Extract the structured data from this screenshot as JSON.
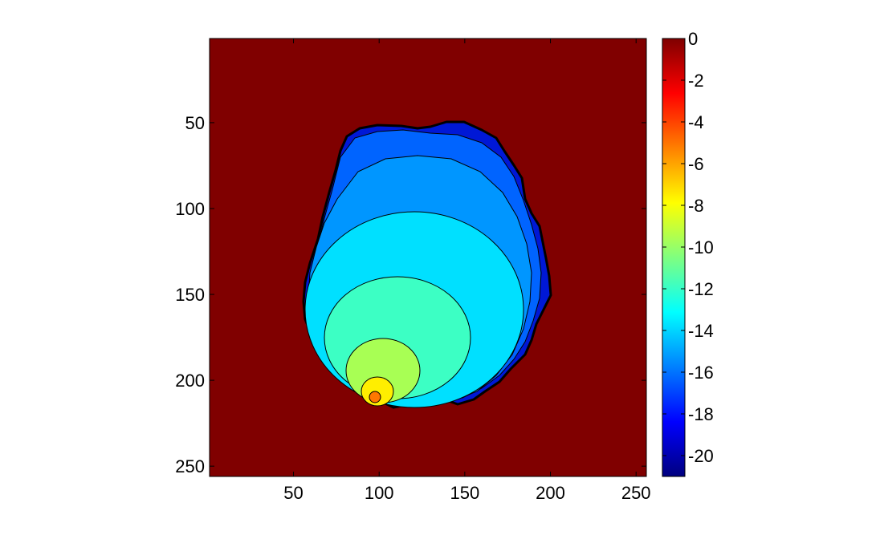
{
  "chart_data": {
    "type": "contour",
    "title": "",
    "xlabel": "",
    "ylabel": "",
    "xlim": [
      1,
      256
    ],
    "ylim": [
      256,
      1
    ],
    "x_ticks": [
      "50",
      "100",
      "150",
      "200",
      "250"
    ],
    "y_ticks": [
      "50",
      "100",
      "150",
      "200",
      "250"
    ],
    "colorbar": {
      "colormap": "jet",
      "range": [
        -21,
        0
      ],
      "ticks": [
        "0",
        "-2",
        "-4",
        "-6",
        "-8",
        "-10",
        "-12",
        "-14",
        "-16",
        "-18",
        "-20"
      ]
    },
    "background": {
      "value": 0,
      "color": "#800000"
    },
    "contour_levels": [
      {
        "level": -20,
        "color": "#0018d6"
      },
      {
        "level": -17.5,
        "color": "#0064ff"
      },
      {
        "level": -15,
        "color": "#0096ff"
      },
      {
        "level": -12.5,
        "color": "#00e0ff"
      },
      {
        "level": -10,
        "color": "#3cffc4"
      },
      {
        "level": -7.5,
        "color": "#a8ff54"
      },
      {
        "level": -5,
        "color": "#ffee00"
      },
      {
        "level": -2.5,
        "color": "#ff7800"
      }
    ],
    "source_point": {
      "x": 98,
      "y": 210
    }
  }
}
